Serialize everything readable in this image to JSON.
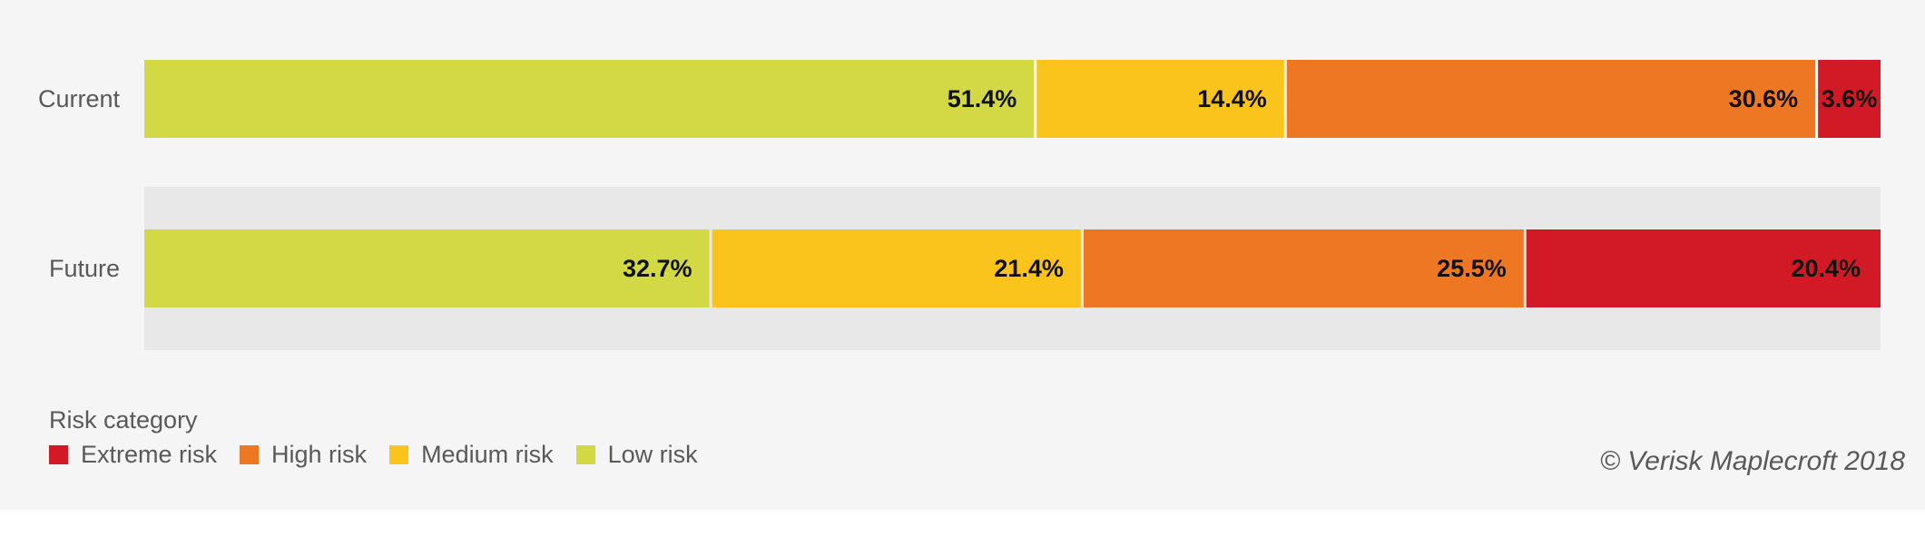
{
  "chart_data": {
    "type": "bar",
    "orientation": "horizontal",
    "stacked": true,
    "categories": [
      "Current",
      "Future"
    ],
    "series": [
      {
        "name": "Low risk",
        "color": "#d2d944",
        "values": [
          51.4,
          32.7
        ]
      },
      {
        "name": "Medium risk",
        "color": "#fbc41c",
        "values": [
          14.4,
          21.4
        ]
      },
      {
        "name": "High risk",
        "color": "#ee7723",
        "values": [
          30.6,
          25.5
        ]
      },
      {
        "name": "Extreme risk",
        "color": "#d11a25",
        "values": [
          3.6,
          20.4
        ]
      }
    ],
    "value_labels": [
      [
        "51.4%",
        "14.4%",
        "30.6%",
        "3.6%"
      ],
      [
        "32.7%",
        "21.4%",
        "25.5%",
        "20.4%"
      ]
    ],
    "xlim": [
      0,
      100
    ],
    "legend": {
      "title": "Risk category",
      "placement": "bottom-left",
      "items": [
        {
          "label": "Extreme risk",
          "color": "#d11a25"
        },
        {
          "label": "High risk",
          "color": "#ee7723"
        },
        {
          "label": "Medium risk",
          "color": "#fbc41c"
        },
        {
          "label": "Low risk",
          "color": "#d2d944"
        }
      ]
    },
    "highlight_band_color": "#e8e8e8"
  },
  "credit": "© Verisk Maplecroft 2018"
}
